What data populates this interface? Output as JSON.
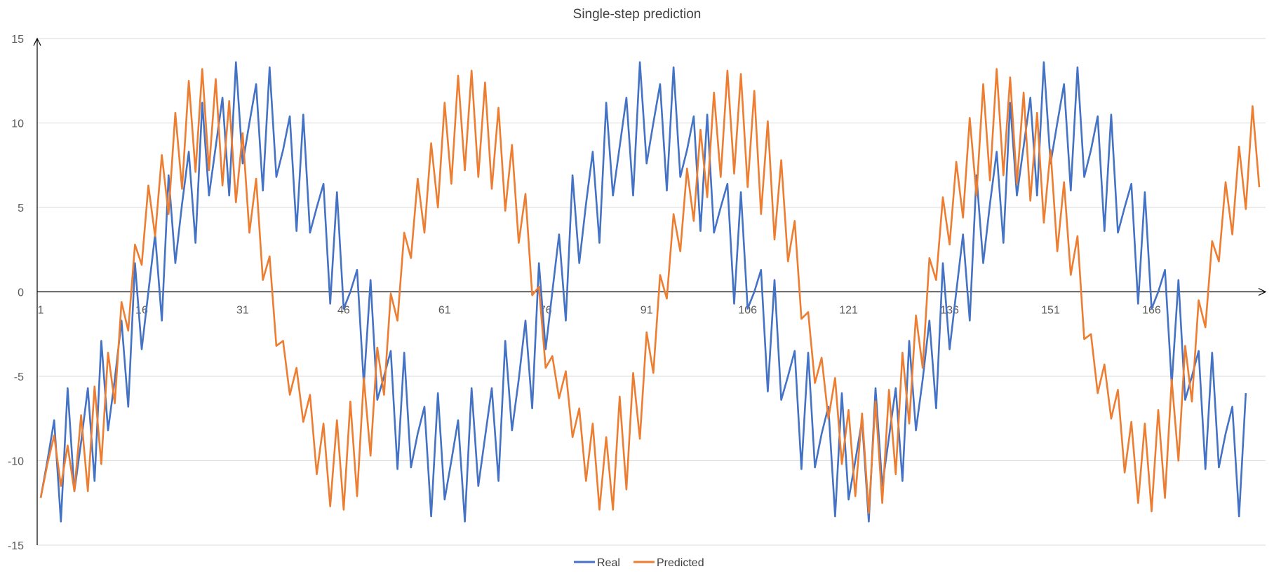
{
  "chart_data": {
    "type": "line",
    "title": "Single-step prediction",
    "xlabel": "",
    "ylabel": "",
    "ylim": [
      -15,
      15
    ],
    "yticks": [
      15,
      10,
      5,
      0,
      -5,
      -10,
      -15
    ],
    "xticks": [
      1,
      16,
      31,
      46,
      61,
      76,
      91,
      106,
      121,
      136,
      151,
      166
    ],
    "x_start": 1,
    "grid": "horizontal",
    "legend_position": "bottom",
    "series": [
      {
        "name": "Real",
        "color": "#4472c4",
        "values": [
          -12.2,
          -10,
          -7.6,
          -13.6,
          -5.7,
          -11.8,
          -8.9,
          -5.7,
          -11.2,
          -2.9,
          -8.2,
          -5.2,
          -1.7,
          -6.8,
          1.7,
          -3.4,
          0,
          3.4,
          -1.7,
          6.9,
          1.7,
          5.2,
          8.3,
          2.9,
          11.2,
          5.7,
          8.6,
          11.5,
          5.7,
          13.6,
          7.6,
          10,
          12.3,
          6,
          13.3,
          6.8,
          8.4,
          10.4,
          3.6,
          10.5,
          3.5,
          5,
          6.4,
          -0.7,
          5.9,
          -1,
          0,
          1.3,
          -5.5,
          0.7,
          -6.4,
          -5,
          -3.5,
          -10.5,
          -3.6,
          -10.4,
          -8.4,
          -6.8,
          -13.3,
          -6,
          -12.3,
          -10,
          -7.6,
          -13.6,
          -5.7,
          -11.5,
          -8.6,
          -5.7,
          -11.2,
          -2.9,
          -8.2,
          -5.2,
          -1.7,
          -6.9,
          1.7,
          -3.4,
          0,
          3.4,
          -1.7,
          6.9,
          1.7,
          5.2,
          8.3,
          2.9,
          11.2,
          5.7,
          8.6,
          11.5,
          5.7,
          13.6,
          7.6,
          10,
          12.3,
          6,
          13.3,
          6.8,
          8.4,
          10.4,
          3.6,
          10.5,
          3.5,
          5,
          6.4,
          -0.7,
          5.9,
          -1,
          0,
          1.3,
          -5.9,
          0.7,
          -6.4,
          -5,
          -3.5,
          -10.5,
          -3.6,
          -10.4,
          -8.4,
          -6.8,
          -13.3,
          -6,
          -12.3,
          -10,
          -7.6,
          -13.6,
          -5.7,
          -11.5,
          -8.6,
          -5.7,
          -11.2,
          -2.9,
          -8.2,
          -5.2,
          -1.7,
          -6.9,
          1.7,
          -3.4,
          0,
          3.4,
          -1.7,
          6.9,
          1.7,
          5.2,
          8.3,
          2.9,
          11.2,
          5.7,
          8.6,
          11.5,
          5.7,
          13.6,
          7.6,
          10,
          12.3,
          6,
          13.3,
          6.8,
          8.4,
          10.4,
          3.6,
          10.5,
          3.5,
          5,
          6.4,
          -0.7,
          5.9,
          -1,
          0,
          1.3,
          -5.5,
          0.7,
          -6.4,
          -5,
          -3.5,
          -10.5,
          -3.6,
          -10.4,
          -8.4,
          -6.8,
          -13.3,
          -6
        ]
      },
      {
        "name": "Predicted",
        "color": "#ed7d31",
        "values": [
          -12.2,
          -10.2,
          -8.5,
          -11.5,
          -9.1,
          -11.8,
          -7.3,
          -11.8,
          -5.6,
          -10.2,
          -3.6,
          -6.6,
          -0.6,
          -2.3,
          2.8,
          1.6,
          6.3,
          3.3,
          8.1,
          4.6,
          10.6,
          6.1,
          12.5,
          7.1,
          13.2,
          7.2,
          12.6,
          6.3,
          11.3,
          5.3,
          9.4,
          3.5,
          6.7,
          0.7,
          2.1,
          -3.2,
          -2.9,
          -6.1,
          -4.5,
          -7.7,
          -6.1,
          -10.8,
          -7.8,
          -12.7,
          -7.6,
          -12.9,
          -6.5,
          -12.1,
          -5.1,
          -9.7,
          -3.3,
          -6.1,
          -0.1,
          -1.7,
          3.5,
          2,
          6.7,
          3.5,
          8.8,
          5,
          11.2,
          6.4,
          12.8,
          7.2,
          13.1,
          6.8,
          12.4,
          6.1,
          10.9,
          4.8,
          8.7,
          2.9,
          5.8,
          -0.2,
          0.3,
          -4.5,
          -3.8,
          -6.3,
          -4.7,
          -8.6,
          -6.9,
          -11.2,
          -7.8,
          -12.9,
          -8.6,
          -12.9,
          -6.2,
          -11.7,
          -4.8,
          -8.7,
          -2.4,
          -4.8,
          1,
          -0.4,
          4.6,
          2.4,
          7.3,
          4.2,
          9.6,
          5.6,
          11.8,
          6.8,
          13.1,
          7,
          12.9,
          6.2,
          11.9,
          4.6,
          10.1,
          3.1,
          7.8,
          1.8,
          4.2,
          -1.6,
          -1.2,
          -5.4,
          -3.9,
          -7.5,
          -5.1,
          -10.2,
          -7,
          -12.1,
          -7.2,
          -13.1,
          -6.5,
          -12.5,
          -5.8,
          -10.8,
          -3.6,
          -7.8,
          -1.4,
          -4.5,
          2,
          0.7,
          5.6,
          2.8,
          7.7,
          4.4,
          10.3,
          5.7,
          12.3,
          6.6,
          13.2,
          6.9,
          12.7,
          6.4,
          11.8,
          5.4,
          10.6,
          4.1,
          8.4,
          2.4,
          6.5,
          1,
          3.3,
          -2.8,
          -2.5,
          -6,
          -4.3,
          -7.5,
          -5.8,
          -10.7,
          -7.7,
          -12.5,
          -7.8,
          -13,
          -7,
          -12.2,
          -5.2,
          -10,
          -3.2,
          -6.5,
          -0.5,
          -2.1,
          3,
          1.8,
          6.5,
          3.4,
          8.6,
          4.9,
          11,
          6.2
        ]
      }
    ]
  }
}
